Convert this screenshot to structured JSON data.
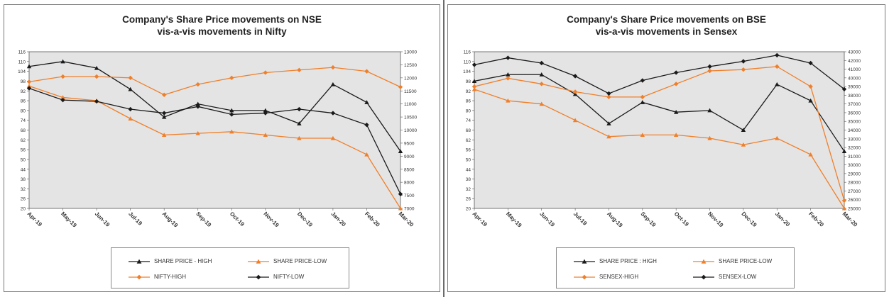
{
  "chart_data": [
    {
      "type": "line",
      "title_line1": "Company's Share Price movements on NSE",
      "title_line2": "vis-a-vis movements in Nifty",
      "categories": [
        "Apr-19",
        "May-19",
        "Jun-19",
        "Jul-19",
        "Aug-19",
        "Sep-19",
        "Oct-19",
        "Nov-19",
        "Dec-19",
        "Jan-20",
        "Feb-20",
        "Mar-20"
      ],
      "y_left_ticks": [
        "20",
        "26",
        "32",
        "38",
        "44",
        "50",
        "56",
        "62",
        "68",
        "74",
        "80",
        "86",
        "92",
        "98",
        "104",
        "110",
        "116"
      ],
      "y_left_range": [
        20,
        116
      ],
      "y_right_ticks": [
        "7000",
        "7500",
        "8000",
        "8500",
        "9000",
        "9500",
        "10000",
        "10500",
        "11000",
        "11500",
        "12000",
        "12500",
        "13000"
      ],
      "y_right_range": [
        7000,
        13000
      ],
      "series": [
        {
          "name": "SHARE PRICE - HIGH",
          "axis": "left",
          "color": "#1a1a1a",
          "marker": "triangle",
          "values": [
            107,
            110,
            106,
            93,
            76,
            84,
            80,
            80,
            72,
            96,
            85,
            55
          ]
        },
        {
          "name": "SHARE PRICE-LOW",
          "axis": "left",
          "color": "#f07f2a",
          "marker": "triangle",
          "values": [
            95,
            88,
            86,
            75,
            65,
            66,
            67,
            65,
            63,
            63,
            53,
            20
          ]
        },
        {
          "name": "NIFTY-HIGH",
          "axis": "right",
          "color": "#f07f2a",
          "marker": "diamond",
          "values": [
            11850,
            12050,
            12050,
            12000,
            11350,
            11750,
            12000,
            12200,
            12300,
            12400,
            12250,
            11650
          ]
        },
        {
          "name": "NIFTY-LOW",
          "axis": "right",
          "color": "#1a1a1a",
          "marker": "diamond",
          "values": [
            11600,
            11150,
            11100,
            10800,
            10650,
            10900,
            10600,
            10650,
            10800,
            10650,
            10200,
            7550
          ]
        }
      ],
      "legend": [
        "SHARE PRICE - HIGH",
        "SHARE PRICE-LOW",
        "NIFTY-HIGH",
        "NIFTY-LOW"
      ],
      "legend_placement": "bottom",
      "grid": false
    },
    {
      "type": "line",
      "title_line1": "Company's Share Price movements on BSE",
      "title_line2": "vis-a-vis movements in Sensex",
      "categories": [
        "Apr-19",
        "May-19",
        "Jun-19",
        "Jul-19",
        "Aug-19",
        "Sep-19",
        "Oct-19",
        "Nov-19",
        "Dec-19",
        "Jan-20",
        "Feb-20",
        "Mar-20"
      ],
      "y_left_ticks": [
        "20",
        "26",
        "32",
        "38",
        "44",
        "50",
        "56",
        "62",
        "68",
        "74",
        "80",
        "86",
        "92",
        "98",
        "104",
        "110",
        "116"
      ],
      "y_left_range": [
        20,
        116
      ],
      "y_right_ticks": [
        "25000",
        "26000",
        "27000",
        "28000",
        "29000",
        "30000",
        "31000",
        "32000",
        "33000",
        "34000",
        "35000",
        "36000",
        "37000",
        "38000",
        "39000",
        "40000",
        "41000",
        "42000",
        "43000"
      ],
      "y_right_range": [
        25000,
        43000
      ],
      "series": [
        {
          "name": "SHARE PRICE : HIGH",
          "axis": "left",
          "color": "#1a1a1a",
          "marker": "triangle",
          "values": [
            98,
            102,
            102,
            90,
            72,
            85,
            79,
            80,
            68,
            96,
            86,
            55
          ]
        },
        {
          "name": "SHARE PRICE-LOW",
          "axis": "left",
          "color": "#f07f2a",
          "marker": "triangle",
          "values": [
            93,
            86,
            84,
            74,
            64,
            65,
            65,
            63,
            59,
            63,
            53,
            20
          ]
        },
        {
          "name": "SENSEX-HIGH",
          "axis": "right",
          "color": "#f07f2a",
          "marker": "diamond",
          "values": [
            39000,
            39950,
            39300,
            38400,
            37800,
            37800,
            39300,
            40800,
            40950,
            41300,
            39000,
            25900
          ]
        },
        {
          "name": "SENSEX-LOW",
          "axis": "right",
          "color": "#1a1a1a",
          "marker": "diamond",
          "values": [
            41500,
            42300,
            41700,
            40200,
            38200,
            39700,
            40600,
            41300,
            41900,
            42600,
            41700,
            38700
          ]
        }
      ],
      "legend": [
        "SHARE PRICE : HIGH",
        "SHARE PRICE-LOW",
        "SENSEX-HIGH",
        "SENSEX-LOW"
      ],
      "legend_placement": "bottom",
      "grid": false
    }
  ]
}
